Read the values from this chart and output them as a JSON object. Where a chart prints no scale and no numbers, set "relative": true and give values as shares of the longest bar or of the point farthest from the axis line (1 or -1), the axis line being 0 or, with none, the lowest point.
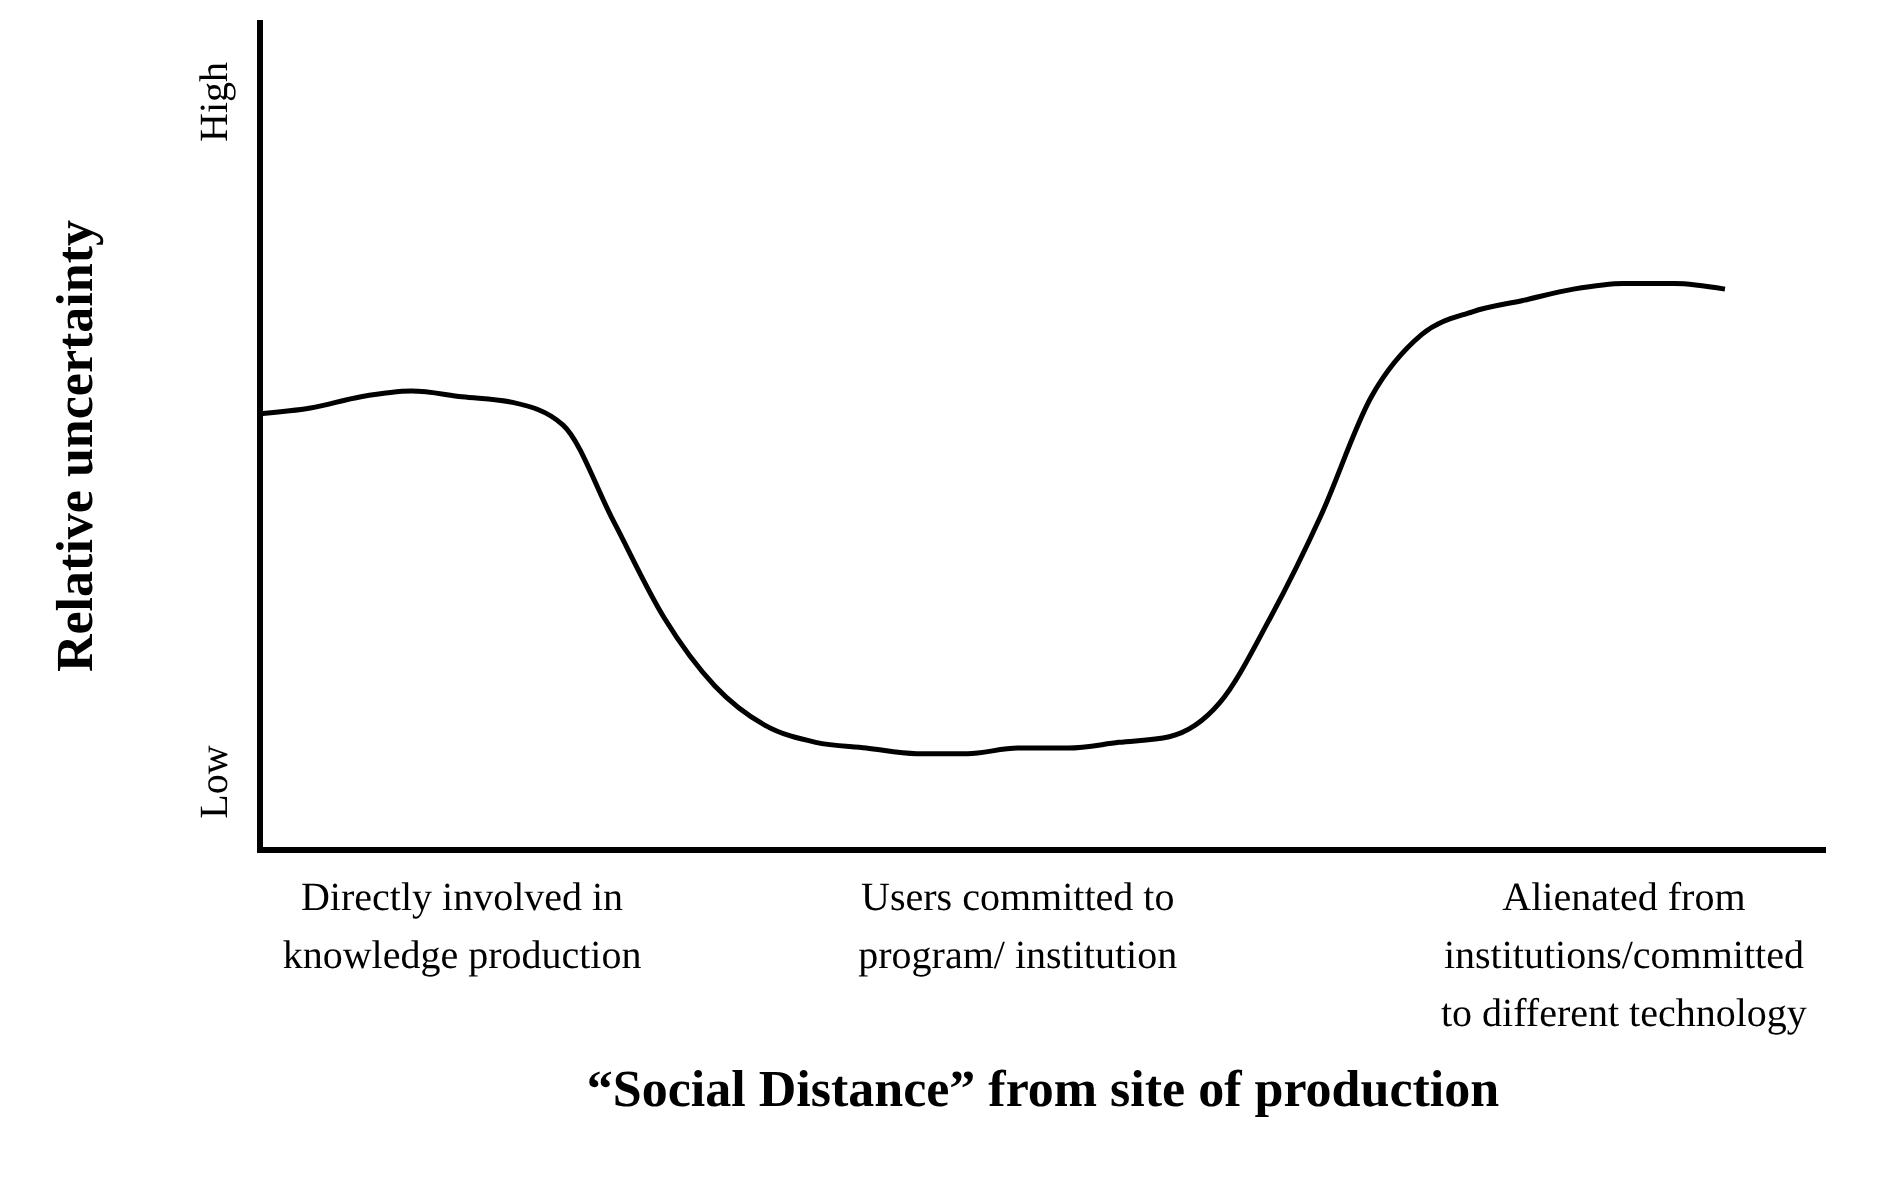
{
  "chart_data": {
    "type": "line",
    "relative": true,
    "xlabel": "“Social Distance” from site of production",
    "ylabel": "Relative uncertainty",
    "annotations": [
      "Low",
      "High"
    ],
    "marker": "none",
    "line_style": "solid",
    "categories": [
      null,
      null,
      null,
      null,
      "Directly involved in knowledge production",
      null,
      null,
      null,
      null,
      null,
      null,
      null,
      null,
      null,
      null,
      "Users committed to program/ institution",
      null,
      null,
      null,
      null,
      null,
      null,
      null,
      null,
      null,
      null,
      null,
      "Alienated from institutions/committed to different technology",
      null,
      null,
      null,
      null
    ],
    "series": [
      {
        "color": "#000000",
        "values": [
          0.77,
          0.78,
          0.8,
          0.81,
          0.8,
          0.79,
          0.75,
          0.58,
          0.41,
          0.29,
          0.22,
          0.19,
          0.18,
          0.17,
          0.17,
          0.18,
          0.18,
          0.19,
          0.2,
          0.26,
          0.41,
          0.59,
          0.8,
          0.91,
          0.95,
          0.97,
          0.99,
          1,
          1,
          0.99,
          null,
          null
        ]
      }
    ]
  }
}
